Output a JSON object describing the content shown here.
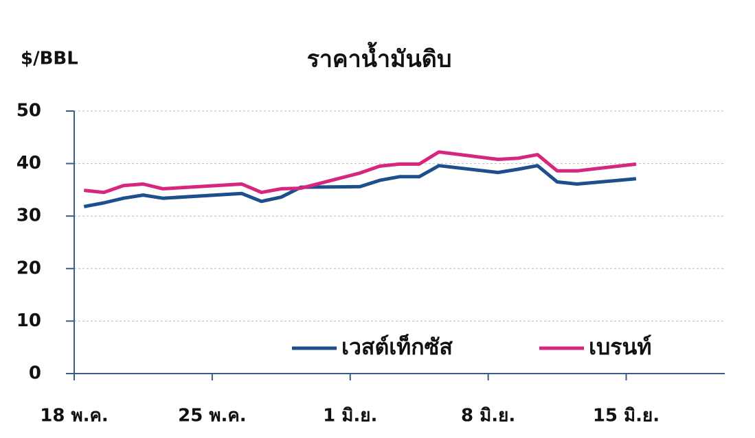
{
  "chart_data": {
    "type": "line",
    "title": "ราคาน้ำมันดิบ",
    "y_label": "$/BBL",
    "series": [
      {
        "name": "เวสต์เท็กซัส",
        "color": "#1c4f8c",
        "x": [
          18,
          19,
          20,
          21,
          22,
          26,
          27,
          28,
          29,
          32,
          33,
          34,
          35,
          36,
          39,
          40,
          41,
          42,
          43,
          46
        ],
        "values": [
          31.8,
          32.5,
          33.4,
          34,
          33.4,
          34.3,
          32.8,
          33.6,
          35.5,
          35.6,
          36.8,
          37.5,
          37.5,
          39.6,
          38.3,
          38.9,
          39.6,
          36.5,
          36.1,
          37.1
        ]
      },
      {
        "name": "เบรนท์",
        "color": "#d6267e",
        "x": [
          18,
          19,
          20,
          21,
          22,
          26,
          27,
          28,
          29,
          32,
          33,
          34,
          35,
          36,
          39,
          40,
          41,
          42,
          43,
          46
        ],
        "values": [
          34.9,
          34.5,
          35.8,
          36.1,
          35.2,
          36.1,
          34.5,
          35.2,
          35.3,
          38.2,
          39.5,
          39.9,
          39.9,
          42.2,
          40.8,
          41,
          41.7,
          38.6,
          38.6,
          39.9
        ]
      }
    ],
    "xlim": [
      18,
      51
    ],
    "xticks": [
      {
        "value": 18,
        "label": "18 พ.ค."
      },
      {
        "value": 25,
        "label": "25 พ.ค."
      },
      {
        "value": 32,
        "label": "1 มิ.ย."
      },
      {
        "value": 39,
        "label": "8 มิ.ย."
      },
      {
        "value": 46,
        "label": "15 มิ.ย."
      }
    ],
    "ylim": [
      0,
      50
    ],
    "yticks": [
      0,
      10,
      20,
      30,
      40,
      50
    ],
    "grid": true
  }
}
